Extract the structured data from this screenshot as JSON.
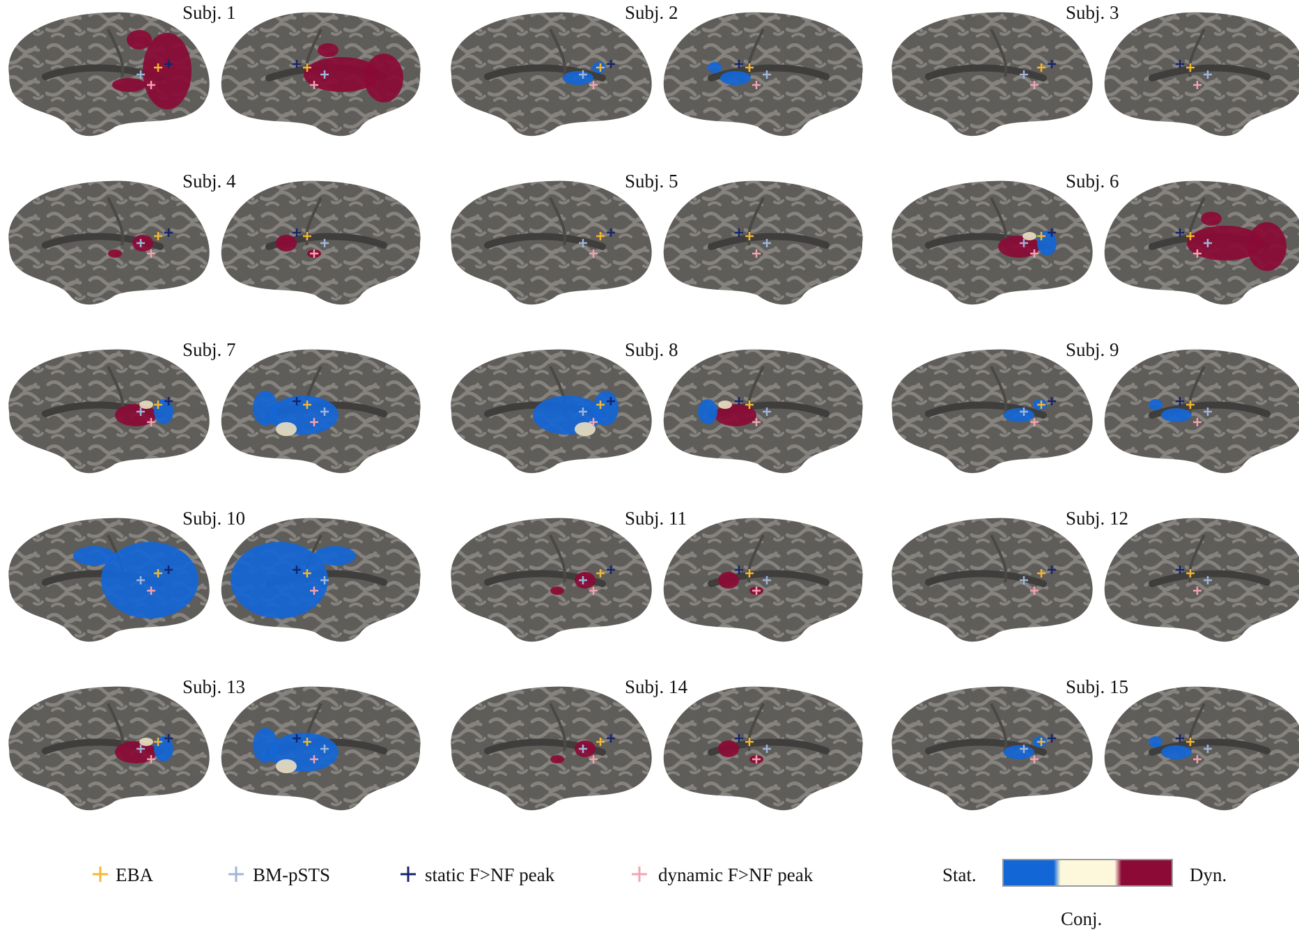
{
  "panels": [
    {
      "label": "Subj. 1",
      "left_pattern": "red-occipital",
      "right_pattern": "red-lateral"
    },
    {
      "label": "Subj. 2",
      "left_pattern": "blue-sparse",
      "right_pattern": "blue-sparse"
    },
    {
      "label": "Subj. 3",
      "left_pattern": "minimal",
      "right_pattern": "minimal"
    },
    {
      "label": "Subj. 4",
      "left_pattern": "red-sparse",
      "right_pattern": "red-sparse"
    },
    {
      "label": "Subj. 5",
      "left_pattern": "minimal",
      "right_pattern": "minimal"
    },
    {
      "label": "Subj. 6",
      "left_pattern": "mixed",
      "right_pattern": "red-lateral"
    },
    {
      "label": "Subj. 7",
      "left_pattern": "mixed",
      "right_pattern": "blue-lateral"
    },
    {
      "label": "Subj. 8",
      "left_pattern": "blue-lateral",
      "right_pattern": "mixed"
    },
    {
      "label": "Subj. 9",
      "left_pattern": "blue-sparse",
      "right_pattern": "blue-sparse"
    },
    {
      "label": "Subj. 10",
      "left_pattern": "blue-large",
      "right_pattern": "blue-large"
    },
    {
      "label": "Subj. 11",
      "left_pattern": "red-sparse",
      "right_pattern": "red-sparse"
    },
    {
      "label": "Subj. 12",
      "left_pattern": "minimal",
      "right_pattern": "minimal"
    },
    {
      "label": "Subj. 13",
      "left_pattern": "mixed",
      "right_pattern": "blue-lateral"
    },
    {
      "label": "Subj. 14",
      "left_pattern": "red-sparse",
      "right_pattern": "red-sparse"
    },
    {
      "label": "Subj. 15",
      "left_pattern": "blue-sparse",
      "right_pattern": "blue-sparse"
    }
  ],
  "legend": {
    "markers": [
      {
        "label": "EBA",
        "color": "#f5b731"
      },
      {
        "label": "BM-pSTS",
        "color": "#9fb6d9"
      },
      {
        "label": "static F>NF peak",
        "color": "#16246a"
      },
      {
        "label": "dynamic F>NF peak",
        "color": "#f2a3b0"
      }
    ],
    "colorbar": {
      "left_label": "Stat.",
      "right_label": "Dyn.",
      "bottom_label": "Conj.",
      "stops": [
        "#1366d6",
        "#fdf8dc",
        "#8b0a36"
      ]
    }
  },
  "colors": {
    "brain_dark": "#5f5d5a",
    "brain_light": "#86837e",
    "static": "#1366d6",
    "dynamic": "#8b0a36",
    "conjunction": "#e6dcc0"
  }
}
